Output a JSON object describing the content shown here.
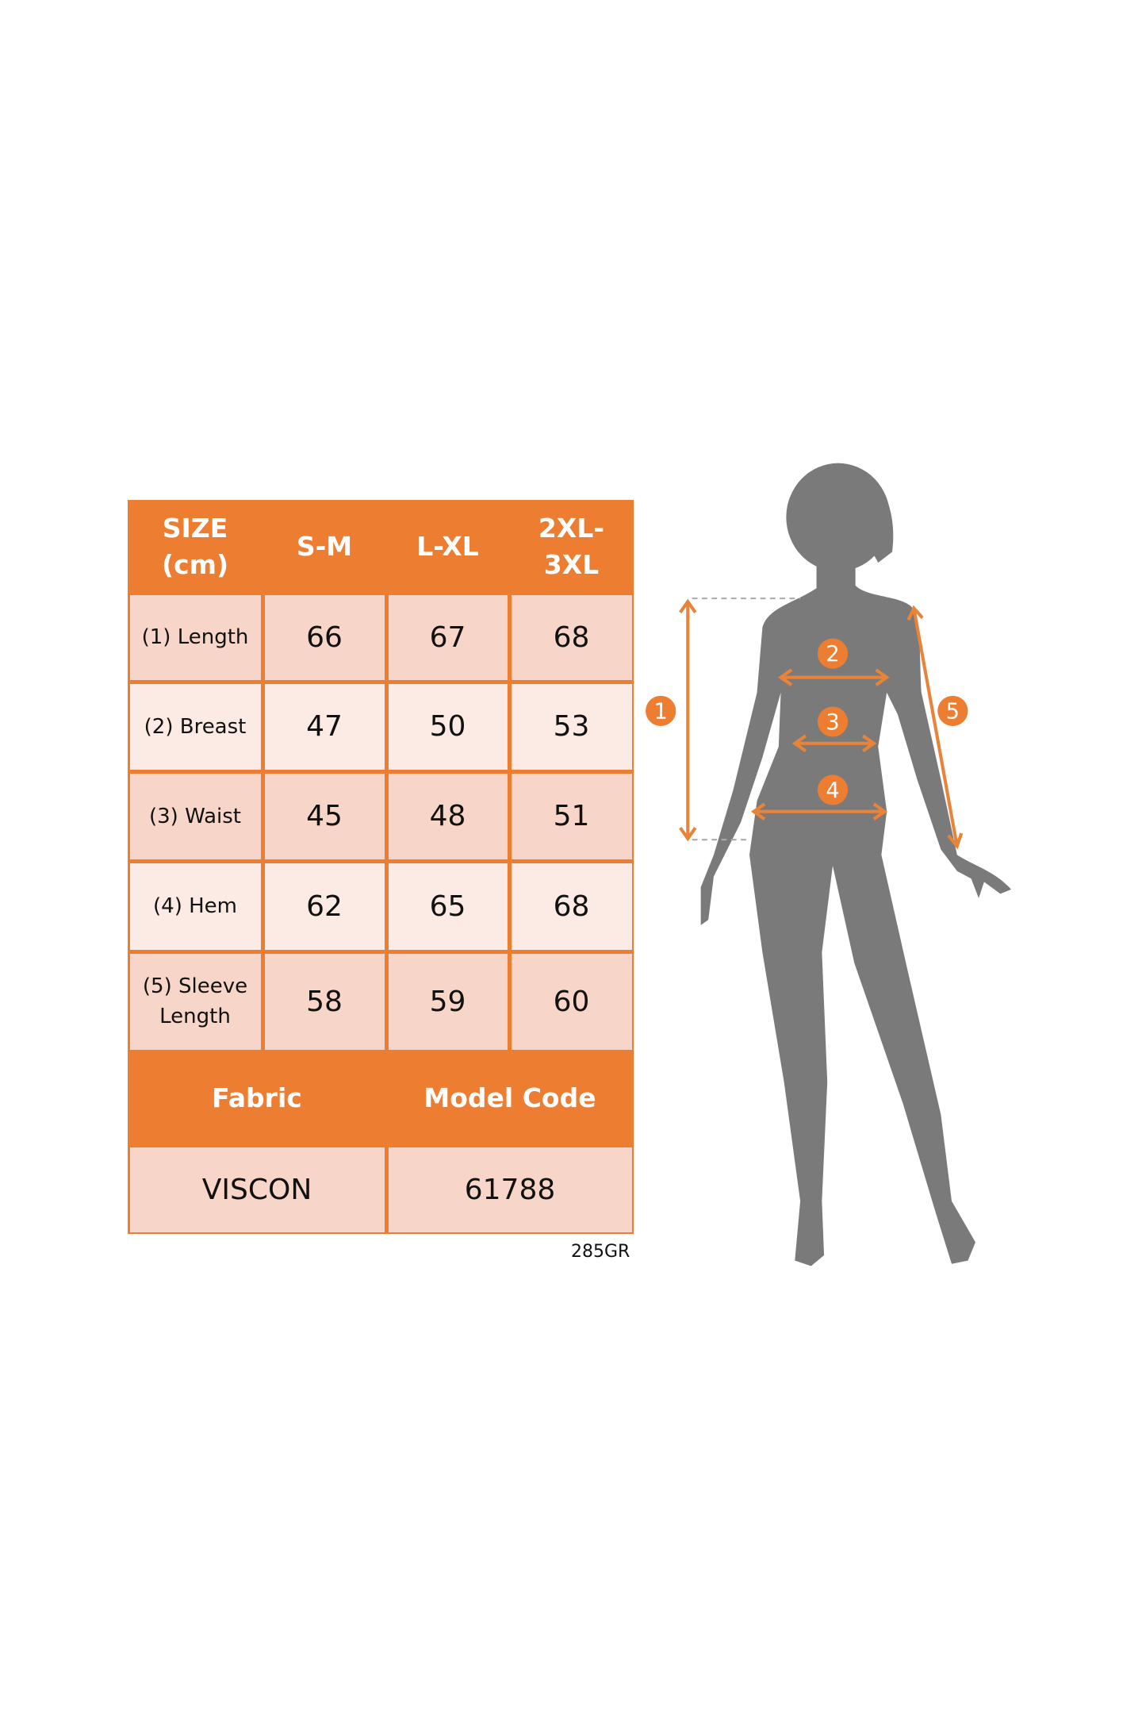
{
  "table": {
    "header": [
      "SIZE (cm)",
      "S-M",
      "L-XL",
      "2XL-3XL"
    ],
    "rows": [
      {
        "label": "(1) Length",
        "values": [
          "66",
          "67",
          "68"
        ]
      },
      {
        "label": "(2) Breast",
        "values": [
          "47",
          "50",
          "53"
        ]
      },
      {
        "label": "(3) Waist",
        "values": [
          "45",
          "48",
          "51"
        ]
      },
      {
        "label": "(4) Hem",
        "values": [
          "62",
          "65",
          "68"
        ]
      },
      {
        "label": "(5) Sleeve Length",
        "values": [
          "58",
          "59",
          "60"
        ]
      }
    ],
    "footer_header": [
      "Fabric",
      "Model Code"
    ],
    "footer_values": [
      "VISCON",
      "61788"
    ]
  },
  "tag": "285GR",
  "figure": {
    "markers": [
      "1",
      "2",
      "3",
      "4",
      "5"
    ]
  },
  "colors": {
    "accent": "#ED7D31",
    "row_dark": "#F7D5C8",
    "row_light": "#FCEBE4",
    "silhouette": "#7A7A7A"
  }
}
